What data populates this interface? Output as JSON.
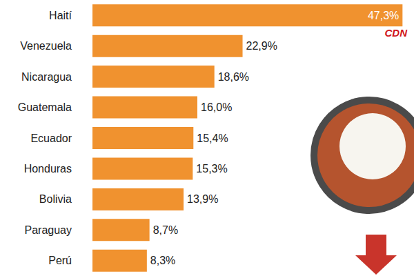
{
  "chart_data": {
    "type": "bar",
    "orientation": "horizontal",
    "categories": [
      "Haití",
      "Venezuela",
      "Nicaragua",
      "Guatemala",
      "Ecuador",
      "Honduras",
      "Bolivia",
      "Paraguay",
      "Perú"
    ],
    "values": [
      47.3,
      22.9,
      18.6,
      16.0,
      15.4,
      15.3,
      13.9,
      8.7,
      8.3
    ],
    "value_labels": [
      "47,3%",
      "22,9%",
      "18,6%",
      "16,0%",
      "15,4%",
      "15,3%",
      "13,9%",
      "8,7%",
      "8,3%"
    ],
    "color": "#f0922f",
    "xlim": [
      0,
      48
    ],
    "grid": false,
    "data_labels": true,
    "tick_labels": "y",
    "annotations": [
      "CDN"
    ]
  }
}
